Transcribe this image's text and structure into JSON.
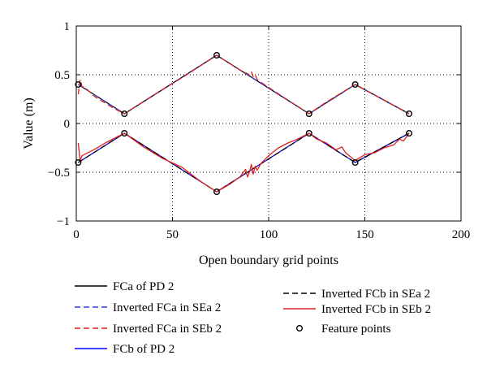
{
  "chart_data": {
    "type": "line",
    "title": "",
    "xlabel": "Open boundary grid points",
    "ylabel": "Value (m)",
    "xlim": [
      0,
      200
    ],
    "ylim": [
      -1,
      1
    ],
    "xticks": [
      0,
      50,
      100,
      150,
      200
    ],
    "yticks": [
      1,
      0.5,
      0,
      -0.5,
      -1
    ],
    "xtick_labels": [
      "0",
      "50",
      "100",
      "150",
      "200"
    ],
    "ytick_labels": [
      "1",
      "0.5",
      "0",
      "−0.5",
      "−1"
    ],
    "grid": "dotted",
    "legend_location": "below plot",
    "series": [
      {
        "name": "FCa of PD 2",
        "color": "#000000",
        "dash": "solid",
        "x": [
          1,
          25,
          73,
          121,
          145,
          173
        ],
        "y": [
          0.4,
          0.1,
          0.7,
          0.1,
          0.4,
          0.1
        ]
      },
      {
        "name": "Inverted FCa in SEa 2",
        "color": "#2a3fd6",
        "dash": "dashed",
        "x": [
          1,
          25,
          73,
          121,
          145,
          173
        ],
        "y": [
          0.4,
          0.1,
          0.7,
          0.1,
          0.4,
          0.1
        ]
      },
      {
        "name": "Inverted FCa in SEb 2",
        "color": "#e02020",
        "dash": "dashed",
        "x": [
          1,
          2,
          3,
          5,
          10,
          15,
          20,
          25,
          40,
          55,
          73,
          85,
          90,
          91,
          92,
          93,
          94,
          100,
          110,
          121,
          130,
          145,
          160,
          173
        ],
        "y": [
          0.3,
          0.45,
          0.38,
          0.36,
          0.27,
          0.21,
          0.15,
          0.1,
          0.29,
          0.47,
          0.7,
          0.55,
          0.5,
          0.53,
          0.48,
          0.5,
          0.45,
          0.37,
          0.24,
          0.1,
          0.22,
          0.4,
          0.24,
          0.1
        ]
      },
      {
        "name": "FCb of PD 2",
        "color": "#0000ff",
        "dash": "solid",
        "x": [
          1,
          25,
          73,
          121,
          145,
          173
        ],
        "y": [
          -0.4,
          -0.1,
          -0.7,
          -0.1,
          -0.4,
          -0.1
        ]
      },
      {
        "name": "Inverted FCb in SEa 2",
        "color": "#000000",
        "dash": "dashed",
        "x": [
          1,
          25,
          73,
          121,
          145,
          173
        ],
        "y": [
          -0.4,
          -0.1,
          -0.7,
          -0.1,
          -0.4,
          -0.1
        ]
      },
      {
        "name": "Inverted FCb in SEb 2",
        "color": "#e02020",
        "dash": "solid",
        "x": [
          1,
          2,
          3,
          5,
          10,
          15,
          20,
          25,
          35,
          45,
          55,
          65,
          73,
          80,
          85,
          88,
          89,
          90,
          91,
          92,
          93,
          94,
          96,
          100,
          105,
          110,
          115,
          121,
          125,
          130,
          135,
          138,
          140,
          145,
          150,
          155,
          160,
          165,
          168,
          170,
          173
        ],
        "y": [
          -0.2,
          -0.38,
          -0.33,
          -0.31,
          -0.26,
          -0.2,
          -0.15,
          -0.1,
          -0.24,
          -0.36,
          -0.45,
          -0.6,
          -0.7,
          -0.62,
          -0.55,
          -0.47,
          -0.55,
          -0.5,
          -0.42,
          -0.52,
          -0.44,
          -0.48,
          -0.41,
          -0.33,
          -0.25,
          -0.2,
          -0.16,
          -0.1,
          -0.16,
          -0.2,
          -0.27,
          -0.24,
          -0.3,
          -0.38,
          -0.32,
          -0.3,
          -0.25,
          -0.22,
          -0.16,
          -0.18,
          -0.1
        ]
      },
      {
        "name": "Feature points",
        "color": "#000000",
        "dash": "none",
        "marker": "circle",
        "x": [
          1,
          25,
          73,
          121,
          145,
          173,
          1,
          25,
          73,
          121,
          145,
          173
        ],
        "y": [
          0.4,
          0.1,
          0.7,
          0.1,
          0.4,
          0.1,
          -0.4,
          -0.1,
          -0.7,
          -0.1,
          -0.4,
          -0.1
        ]
      }
    ]
  }
}
